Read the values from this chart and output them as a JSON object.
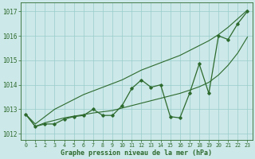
{
  "x": [
    0,
    1,
    2,
    3,
    4,
    5,
    6,
    7,
    8,
    9,
    10,
    11,
    12,
    13,
    14,
    15,
    16,
    17,
    18,
    19,
    20,
    21,
    22,
    23
  ],
  "y_main": [
    1012.8,
    1012.3,
    1012.4,
    1012.4,
    1012.6,
    1012.7,
    1012.75,
    1013.0,
    1012.75,
    1012.75,
    1013.15,
    1013.85,
    1014.2,
    1013.9,
    1014.0,
    1012.7,
    1012.65,
    1013.65,
    1014.85,
    1013.65,
    1016.0,
    1015.85,
    1016.5,
    1017.0
  ],
  "y_upper": [
    1012.8,
    1012.4,
    1012.7,
    1013.0,
    1013.2,
    1013.4,
    1013.6,
    1013.75,
    1013.9,
    1014.05,
    1014.2,
    1014.4,
    1014.6,
    1014.75,
    1014.9,
    1015.05,
    1015.2,
    1015.4,
    1015.6,
    1015.8,
    1016.05,
    1016.35,
    1016.7,
    1017.05
  ],
  "y_lower": [
    1012.8,
    1012.3,
    1012.45,
    1012.55,
    1012.65,
    1012.72,
    1012.78,
    1012.85,
    1012.9,
    1012.95,
    1013.05,
    1013.15,
    1013.25,
    1013.35,
    1013.45,
    1013.55,
    1013.65,
    1013.78,
    1013.92,
    1014.1,
    1014.4,
    1014.8,
    1015.3,
    1015.95
  ],
  "line_color": "#2d6a2d",
  "bg_color": "#cce8e8",
  "grid_color": "#99cccc",
  "xlabel": "Graphe pression niveau de la mer (hPa)",
  "ylim": [
    1011.75,
    1017.35
  ],
  "yticks": [
    1012,
    1013,
    1014,
    1015,
    1016,
    1017
  ],
  "xticks": [
    0,
    1,
    2,
    3,
    4,
    5,
    6,
    7,
    8,
    9,
    10,
    11,
    12,
    13,
    14,
    15,
    16,
    17,
    18,
    19,
    20,
    21,
    22,
    23
  ],
  "figsize": [
    3.2,
    2.0
  ],
  "dpi": 100
}
